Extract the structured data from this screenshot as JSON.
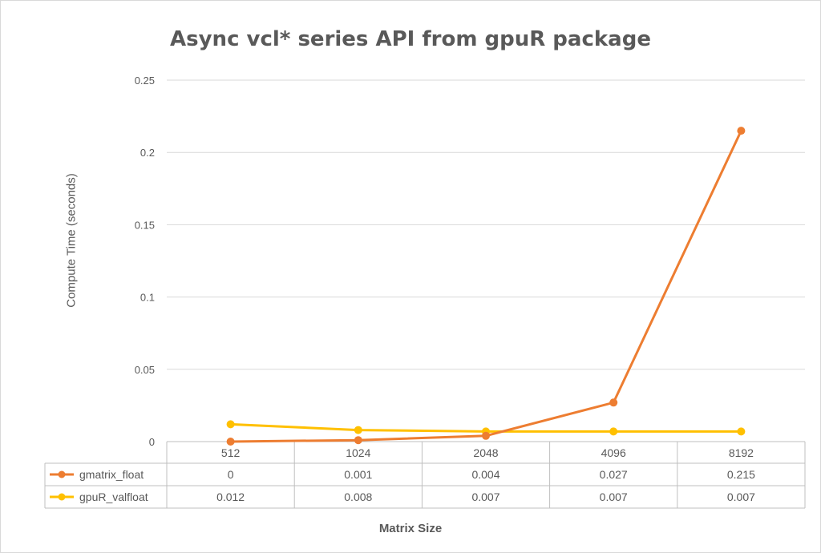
{
  "chart_data": {
    "type": "line",
    "title": "Async vcl* series API from gpuR package",
    "xlabel": "Matrix Size",
    "ylabel": "Compute Time (seconds)",
    "categories": [
      "512",
      "1024",
      "2048",
      "4096",
      "8192"
    ],
    "ylim": [
      0,
      0.25
    ],
    "y_ticks": [
      "0",
      "0.05",
      "0.1",
      "0.15",
      "0.2",
      "0.25"
    ],
    "grid": true,
    "legend_placement": "data-table",
    "series": [
      {
        "name": "gmatrix_float",
        "color": "#ED7D31",
        "values": [
          0,
          0.001,
          0.004,
          0.027,
          0.215
        ],
        "labels": [
          "0",
          "0.001",
          "0.004",
          "0.027",
          "0.215"
        ]
      },
      {
        "name": "gpuR_valfloat",
        "color": "#FFC000",
        "values": [
          0.012,
          0.008,
          0.007,
          0.007,
          0.007
        ],
        "labels": [
          "0.012",
          "0.008",
          "0.007",
          "0.007",
          "0.007"
        ]
      }
    ]
  }
}
